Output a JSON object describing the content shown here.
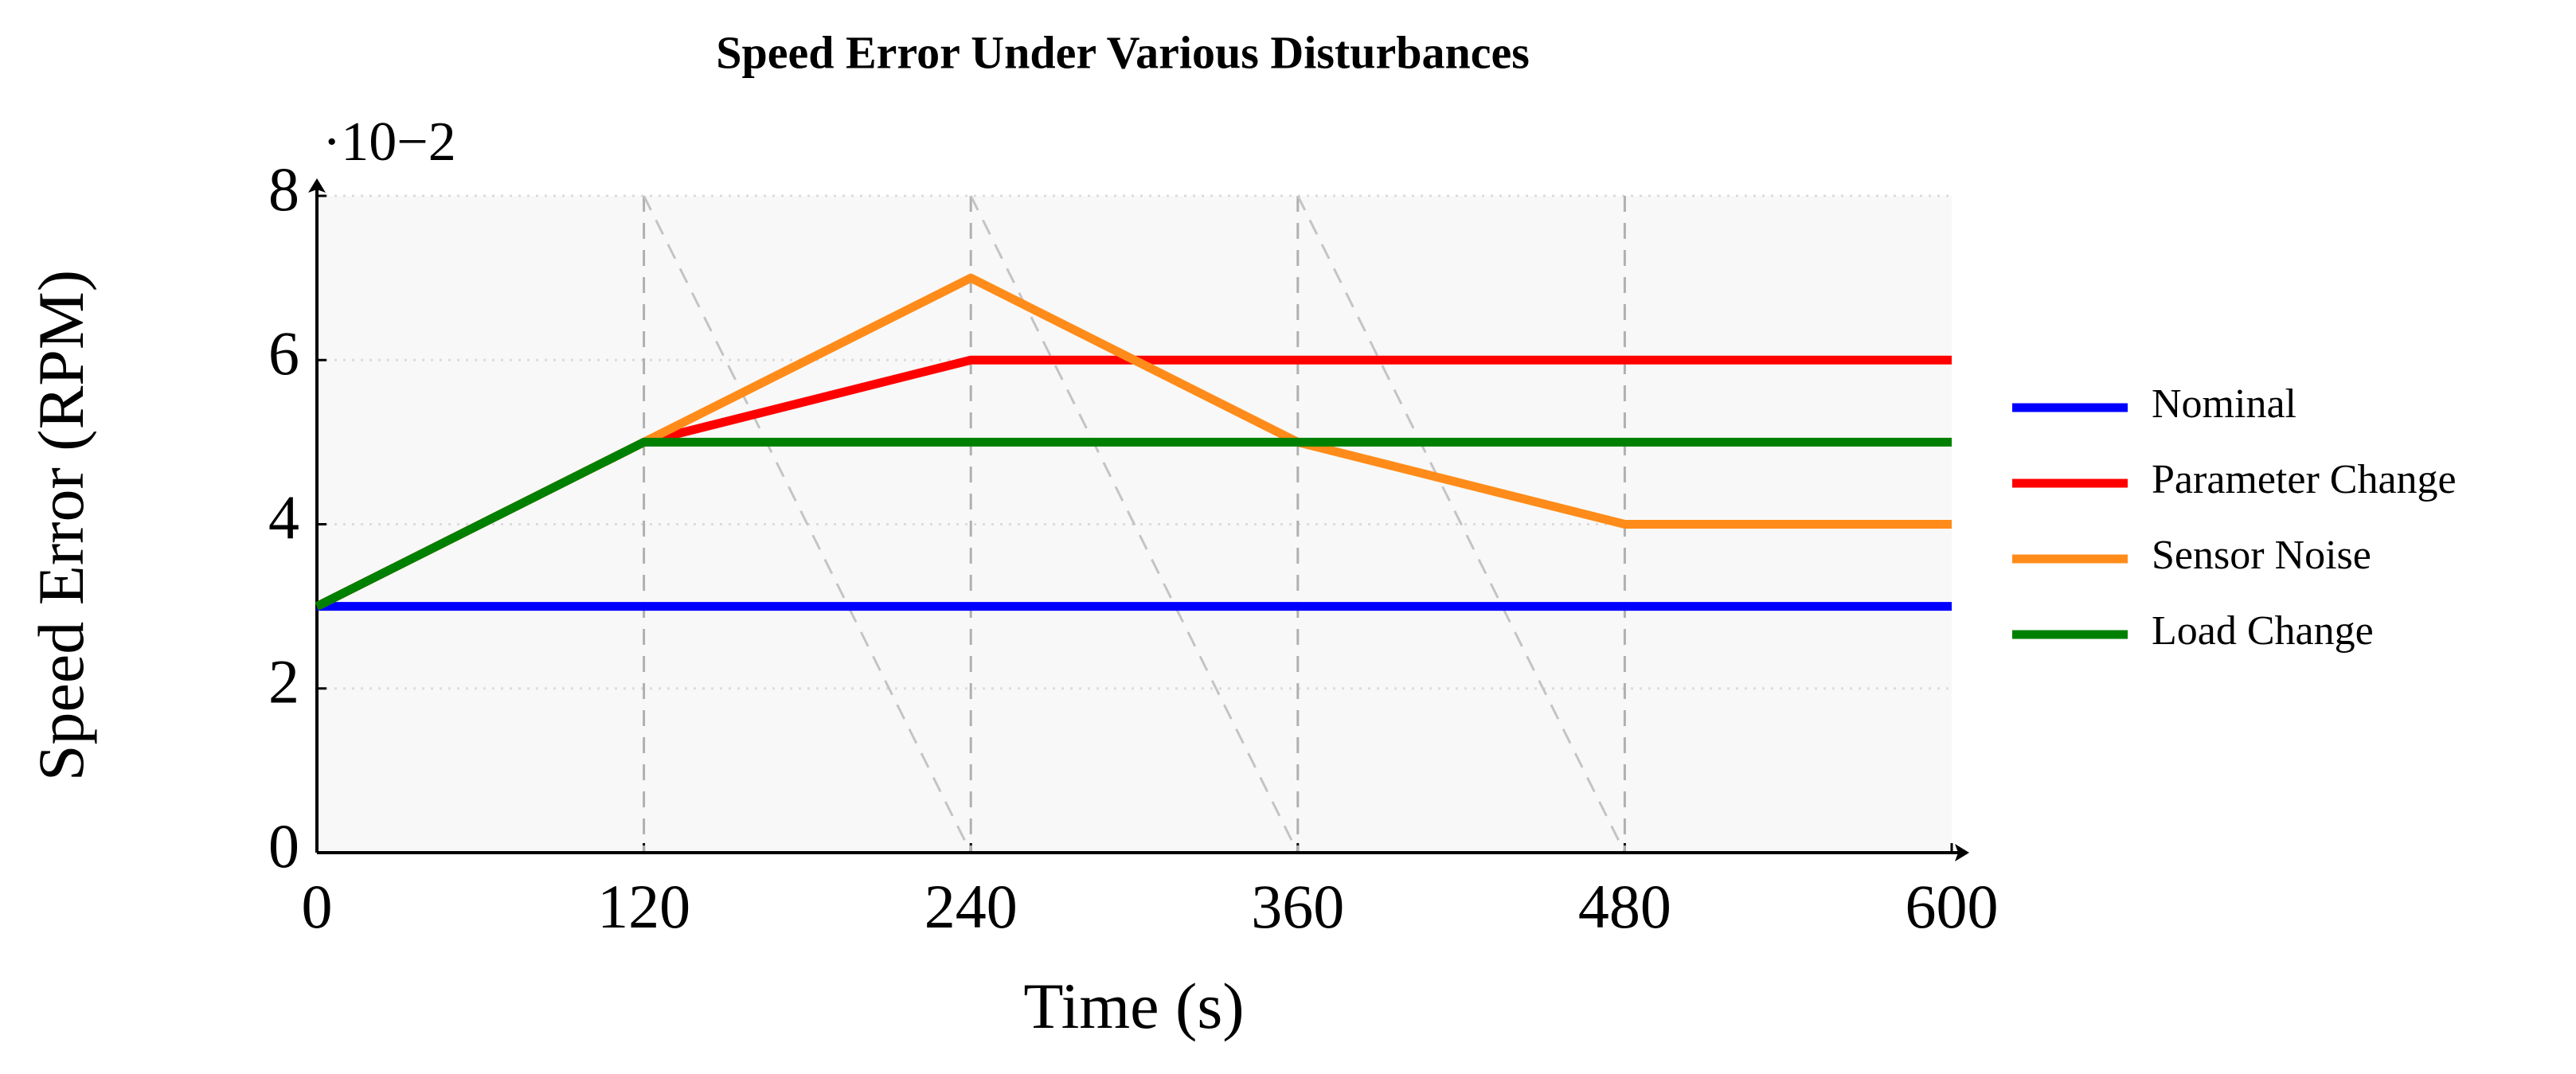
{
  "chart_data": {
    "type": "line",
    "title": "Speed Error Under Various Disturbances",
    "x_label": "Time (s)",
    "y_label": "Speed Error (RPM)",
    "y_scale_label": "·10−2",
    "x": [
      0,
      120,
      240,
      360,
      480,
      600
    ],
    "series": [
      {
        "name": "Nominal",
        "color": "#0000ff",
        "values": [
          3,
          3,
          3,
          3,
          3,
          3
        ]
      },
      {
        "name": "Parameter Change",
        "color": "#ff0000",
        "values": [
          3,
          5,
          6,
          6,
          6,
          6
        ]
      },
      {
        "name": "Sensor Noise",
        "color": "#ff8c1a",
        "values": [
          3,
          5,
          7,
          5,
          4,
          4
        ]
      },
      {
        "name": "Load Change",
        "color": "#008000",
        "values": [
          3,
          5,
          5,
          5,
          5,
          5
        ]
      }
    ],
    "xlim": [
      0,
      600
    ],
    "xticks": [
      0,
      120,
      240,
      360,
      480,
      600
    ],
    "ylim": [
      0,
      8
    ],
    "yticks": [
      0,
      2,
      4,
      6,
      8
    ],
    "grid": true,
    "legend": "right"
  }
}
